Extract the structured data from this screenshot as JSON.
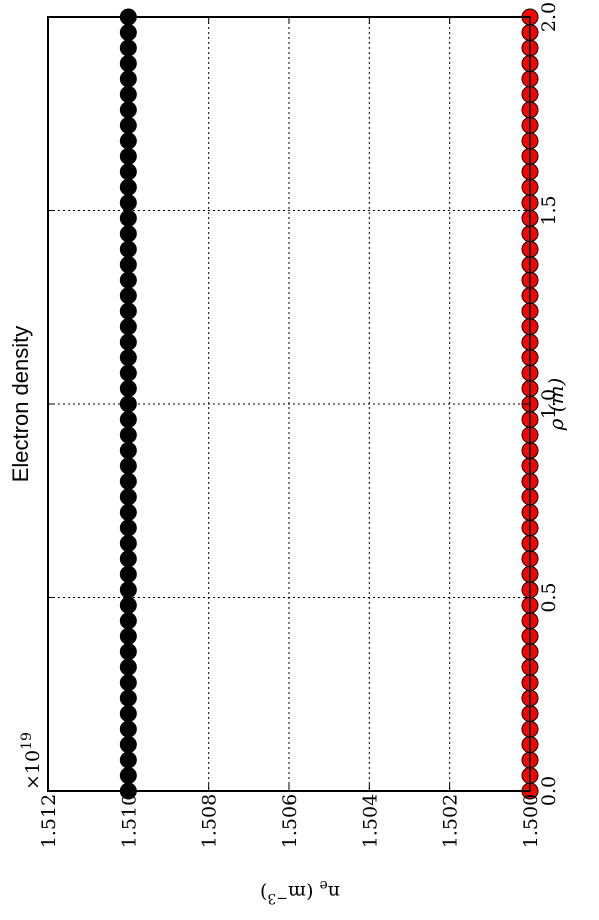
{
  "chart_data": {
    "type": "scatter",
    "title": "Electron density",
    "xlabel": "ρ (m)",
    "ylabel": "n_e (m^-3)",
    "ylabel_parts": {
      "main": "n",
      "sub": "e",
      "open": " (m",
      "sup": "−3",
      "close": ")"
    },
    "multiplier": "×10",
    "multiplier_exp": "19",
    "x_ticks": [
      "0.0",
      "0.5",
      "1.0",
      "1.5",
      "2.0"
    ],
    "x_tick_values": [
      0.0,
      0.5,
      1.0,
      1.5,
      2.0
    ],
    "y_ticks": [
      "1.500",
      "1.502",
      "1.504",
      "1.506",
      "1.508",
      "1.510",
      "1.512"
    ],
    "y_tick_values": [
      1.5,
      1.502,
      1.504,
      1.506,
      1.508,
      1.51,
      1.512
    ],
    "xlim": [
      0.0,
      2.0
    ],
    "ylim": [
      1.5,
      1.512
    ],
    "grid": true,
    "orientation": "rotated 90° clockwise",
    "series": [
      {
        "color": "#000000",
        "x": [
          0.0,
          0.04,
          0.08,
          0.12,
          0.16,
          0.2,
          0.24,
          0.28,
          0.32,
          0.36,
          0.4,
          0.44,
          0.48,
          0.52,
          0.56,
          0.6,
          0.64,
          0.68,
          0.72,
          0.76,
          0.8,
          0.84,
          0.88,
          0.92,
          0.96,
          1.0,
          1.04,
          1.08,
          1.12,
          1.16,
          1.2,
          1.24,
          1.28,
          1.32,
          1.36,
          1.4,
          1.44,
          1.48,
          1.52,
          1.56,
          1.6,
          1.64,
          1.68,
          1.72,
          1.76,
          1.8,
          1.84,
          1.88,
          1.92,
          1.96,
          2.0
        ],
        "y": [
          1.51,
          1.51,
          1.51,
          1.51,
          1.51,
          1.51,
          1.51,
          1.51,
          1.51,
          1.51,
          1.51,
          1.51,
          1.51,
          1.51,
          1.51,
          1.51,
          1.51,
          1.51,
          1.51,
          1.51,
          1.51,
          1.51,
          1.51,
          1.51,
          1.51,
          1.51,
          1.51,
          1.51,
          1.51,
          1.51,
          1.51,
          1.51,
          1.51,
          1.51,
          1.51,
          1.51,
          1.51,
          1.51,
          1.51,
          1.51,
          1.51,
          1.51,
          1.51,
          1.51,
          1.51,
          1.51,
          1.51,
          1.51,
          1.51,
          1.51,
          1.51
        ]
      },
      {
        "color": "#ff0000",
        "x": [
          0.0,
          0.04,
          0.08,
          0.12,
          0.16,
          0.2,
          0.24,
          0.28,
          0.32,
          0.36,
          0.4,
          0.44,
          0.48,
          0.52,
          0.56,
          0.6,
          0.64,
          0.68,
          0.72,
          0.76,
          0.8,
          0.84,
          0.88,
          0.92,
          0.96,
          1.0,
          1.04,
          1.08,
          1.12,
          1.16,
          1.2,
          1.24,
          1.28,
          1.32,
          1.36,
          1.4,
          1.44,
          1.48,
          1.52,
          1.56,
          1.6,
          1.64,
          1.68,
          1.72,
          1.76,
          1.8,
          1.84,
          1.88,
          1.92,
          1.96,
          2.0
        ],
        "y": [
          1.5,
          1.5,
          1.5,
          1.5,
          1.5,
          1.5,
          1.5,
          1.5,
          1.5,
          1.5,
          1.5,
          1.5,
          1.5,
          1.5,
          1.5,
          1.5,
          1.5,
          1.5,
          1.5,
          1.5,
          1.5,
          1.5,
          1.5,
          1.5,
          1.5,
          1.5,
          1.5,
          1.5,
          1.5,
          1.5,
          1.5,
          1.5,
          1.5,
          1.5,
          1.5,
          1.5,
          1.5,
          1.5,
          1.5,
          1.5,
          1.5,
          1.5,
          1.5,
          1.5,
          1.5,
          1.5,
          1.5,
          1.5,
          1.5,
          1.5,
          1.5
        ]
      }
    ]
  }
}
